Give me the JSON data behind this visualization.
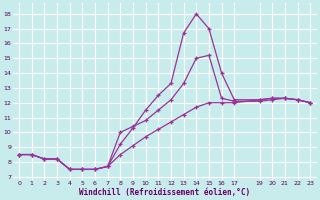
{
  "background_color": "#c8ecec",
  "line_color": "#993399",
  "xlabel": "Windchill (Refroidissement éolien,°C)",
  "xlim": [
    -0.5,
    23.5
  ],
  "ylim": [
    6.8,
    18.7
  ],
  "xticks": [
    0,
    1,
    2,
    3,
    4,
    5,
    6,
    7,
    8,
    9,
    10,
    11,
    12,
    13,
    14,
    15,
    16,
    17,
    19,
    20,
    21,
    22,
    23
  ],
  "yticks": [
    7,
    8,
    9,
    10,
    11,
    12,
    13,
    14,
    15,
    16,
    17,
    18
  ],
  "grid_color": "#aadddd",
  "curve_spike_x": [
    0,
    1,
    2,
    3,
    4,
    5,
    6,
    7,
    8,
    9,
    10,
    11,
    12,
    13,
    14,
    15,
    16,
    17,
    19,
    20,
    21,
    22,
    23
  ],
  "curve_spike_y": [
    8.5,
    8.5,
    8.2,
    8.2,
    7.5,
    7.5,
    7.5,
    7.7,
    9.2,
    10.3,
    11.5,
    12.5,
    13.3,
    16.7,
    18.0,
    17.0,
    14.0,
    12.2,
    12.2,
    12.3,
    12.3,
    12.2,
    12.0
  ],
  "curve_mid_x": [
    0,
    1,
    2,
    3,
    4,
    5,
    6,
    7,
    8,
    9,
    10,
    11,
    12,
    13,
    14,
    15,
    16,
    17,
    19,
    20,
    21,
    22,
    23
  ],
  "curve_mid_y": [
    8.5,
    8.5,
    8.2,
    8.2,
    7.5,
    7.5,
    7.5,
    7.7,
    10.0,
    10.4,
    10.8,
    11.5,
    12.2,
    13.3,
    15.0,
    15.2,
    12.3,
    12.1,
    12.1,
    12.2,
    12.3,
    12.2,
    12.0
  ],
  "curve_low_x": [
    0,
    1,
    2,
    3,
    4,
    5,
    6,
    7,
    8,
    9,
    10,
    11,
    12,
    13,
    14,
    15,
    16,
    17,
    19,
    20,
    21,
    22,
    23
  ],
  "curve_low_y": [
    8.5,
    8.5,
    8.2,
    8.2,
    7.5,
    7.5,
    7.5,
    7.7,
    8.5,
    9.1,
    9.7,
    10.2,
    10.7,
    11.2,
    11.7,
    12.0,
    12.0,
    12.0,
    12.2,
    12.3,
    12.3,
    12.2,
    12.0
  ]
}
